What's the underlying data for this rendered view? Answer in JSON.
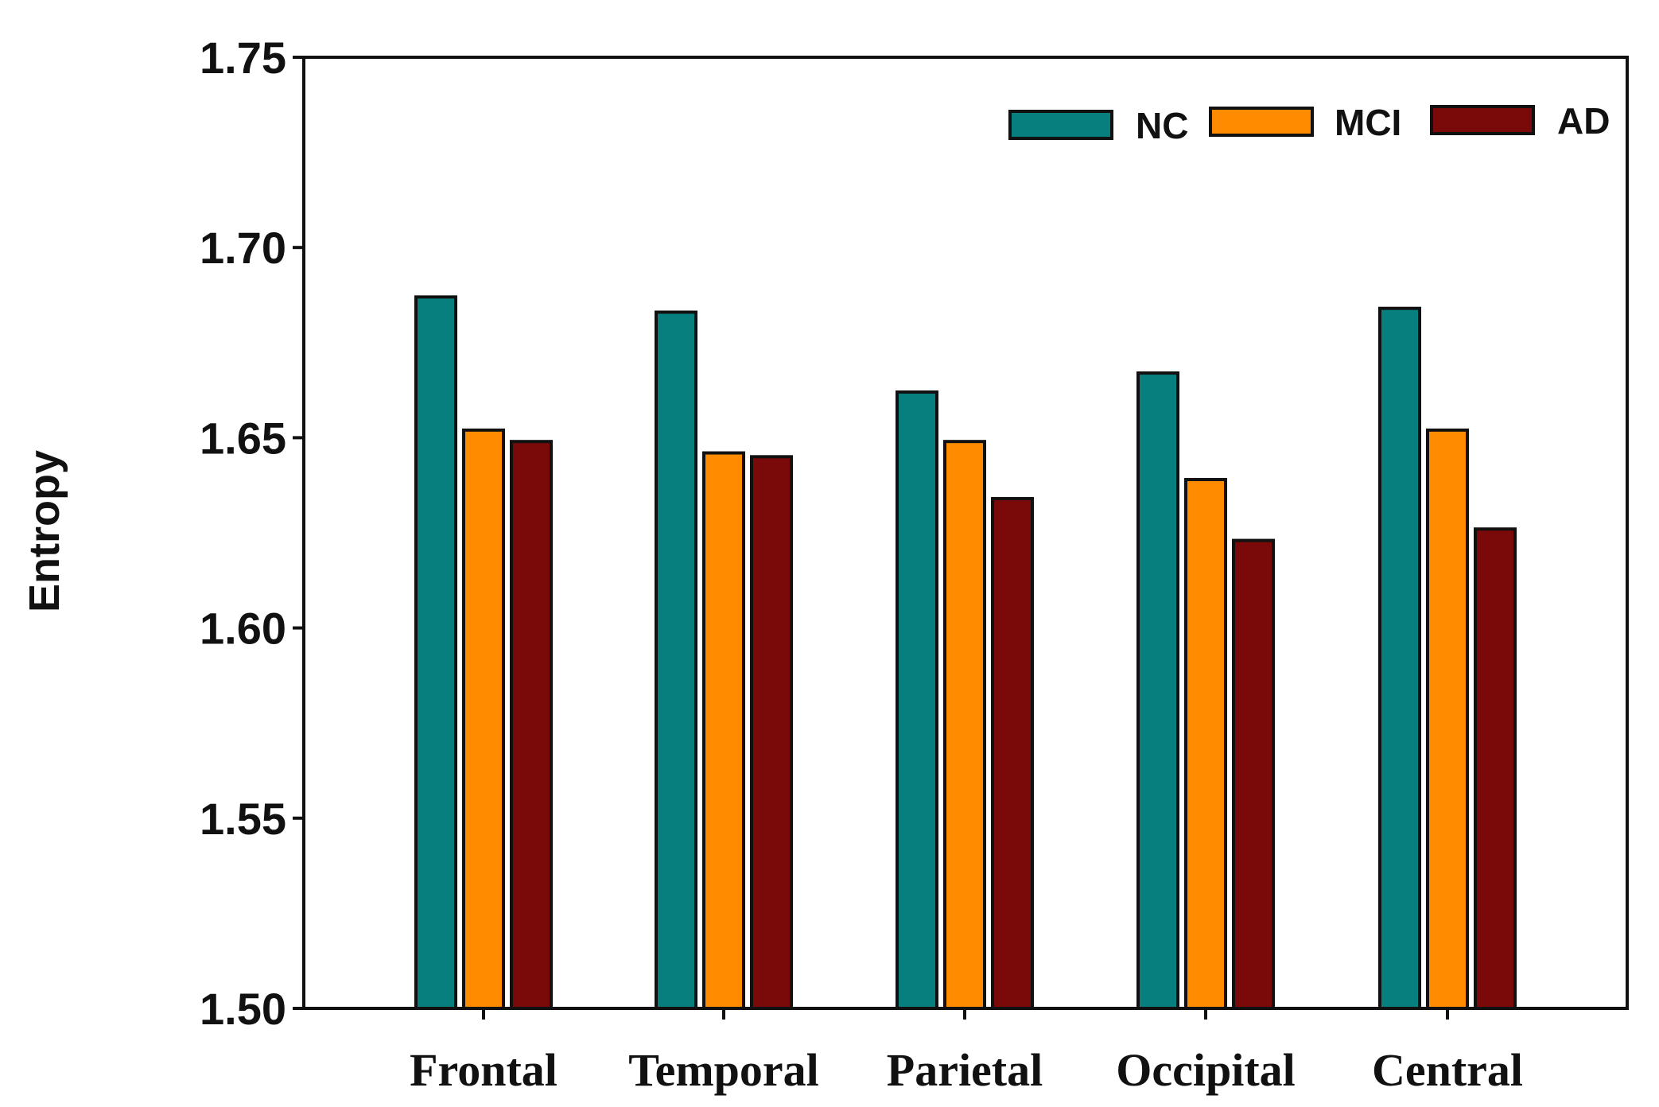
{
  "chart_data": {
    "type": "bar",
    "title": "",
    "xlabel": "",
    "ylabel": "Entropy",
    "ylim": [
      1.5,
      1.75
    ],
    "yticks": [
      "1.50",
      "1.55",
      "1.60",
      "1.65",
      "1.70",
      "1.75"
    ],
    "ytick_values": [
      1.5,
      1.55,
      1.6,
      1.65,
      1.7,
      1.75
    ],
    "grid": false,
    "legend_position": "top-right",
    "categories": [
      "Frontal",
      "Temporal",
      "Parietal",
      "Occipital",
      "Central"
    ],
    "series": [
      {
        "name": "NC",
        "color": "#087F7F",
        "values": [
          1.687,
          1.683,
          1.662,
          1.667,
          1.684
        ]
      },
      {
        "name": "MCI",
        "color": "#FF8C00",
        "values": [
          1.652,
          1.646,
          1.649,
          1.639,
          1.652
        ]
      },
      {
        "name": "AD",
        "color": "#7A0A0A",
        "values": [
          1.649,
          1.645,
          1.634,
          1.623,
          1.626
        ]
      }
    ]
  }
}
